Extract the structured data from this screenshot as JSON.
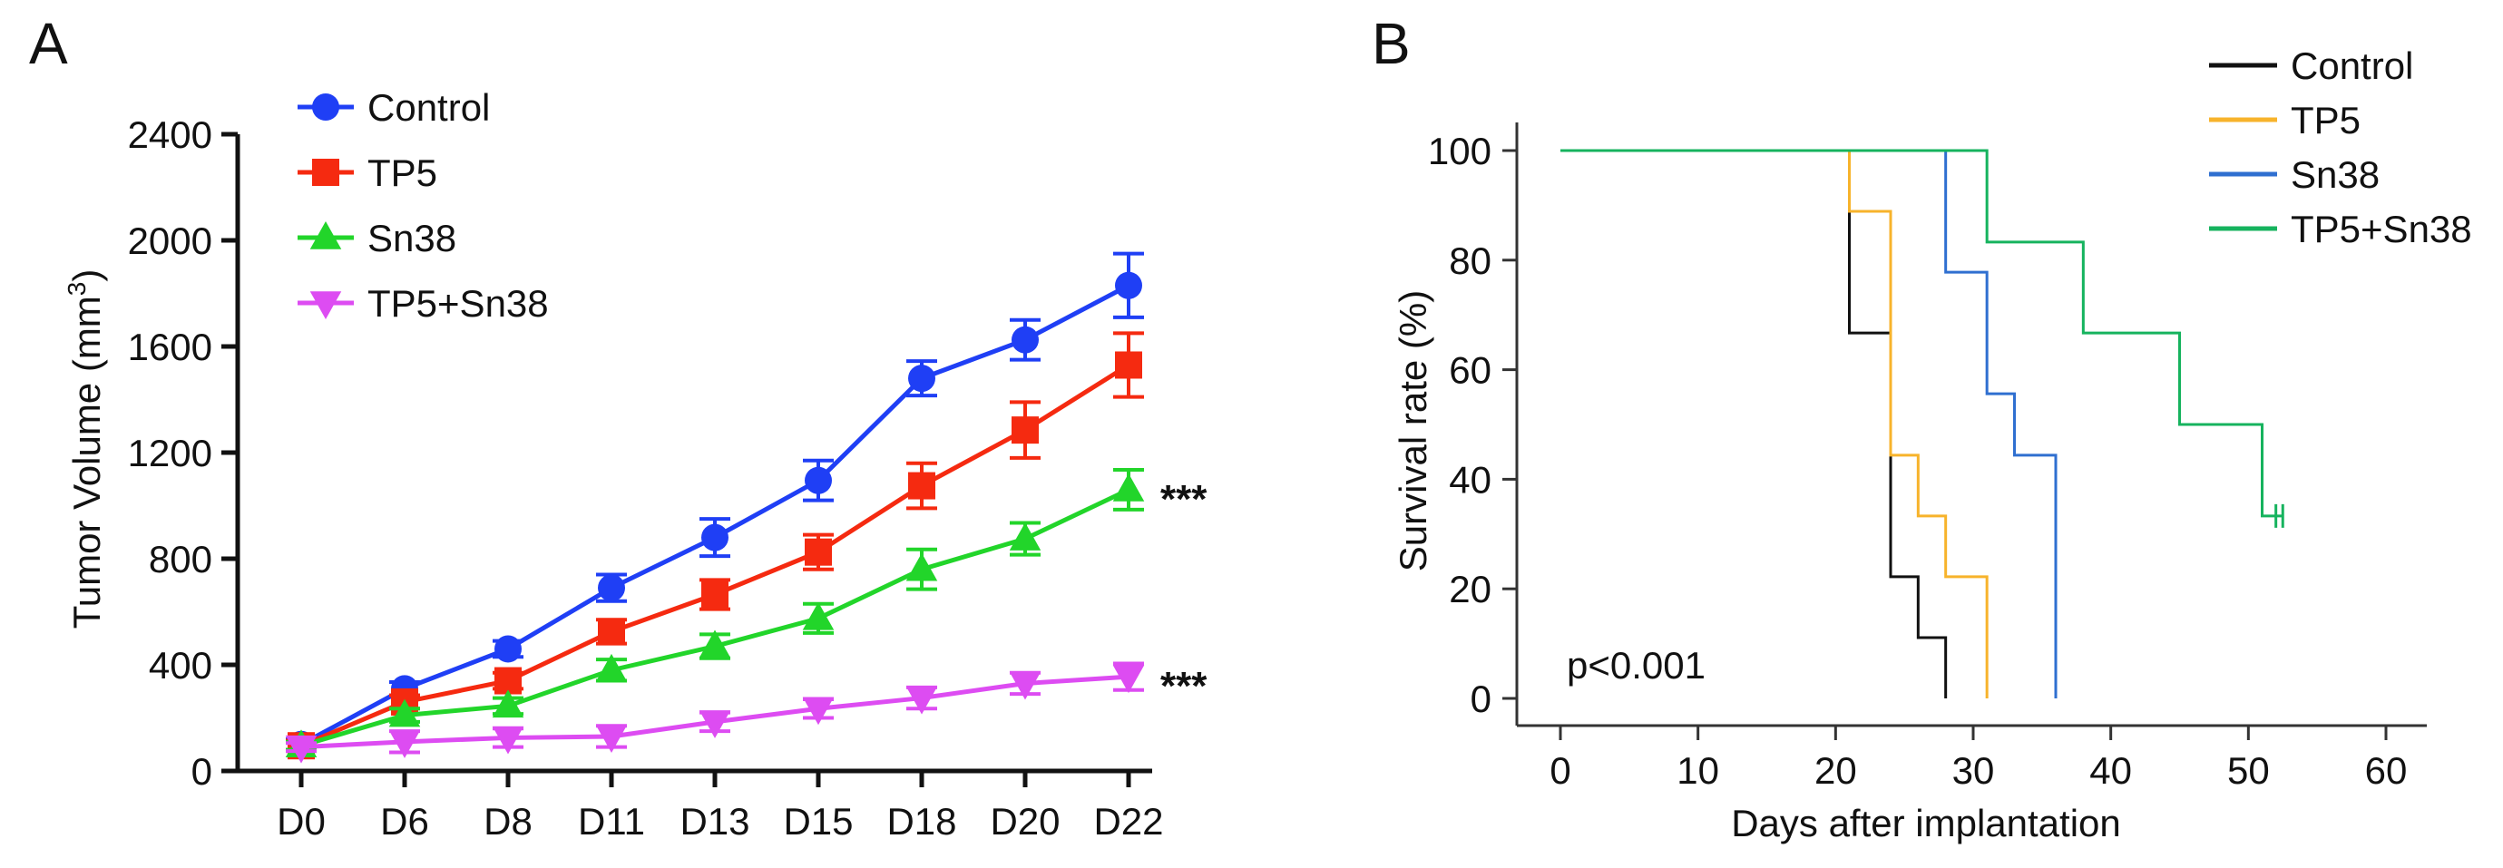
{
  "chart_data": [
    {
      "panel_label": "A",
      "type": "line",
      "title": "",
      "xlabel": "",
      "ylabel": "Tumor Volume (mm",
      "ylabel_sup": "3",
      "ylabel_close": ")",
      "ylim": [
        0,
        2400
      ],
      "yticks": [
        0,
        400,
        800,
        1200,
        1600,
        2000,
        2400
      ],
      "categories": [
        "D0",
        "D6",
        "D8",
        "D11",
        "D13",
        "D15",
        "D18",
        "D20",
        "D22"
      ],
      "legend_position": "top-left",
      "series": [
        {
          "name": "Control",
          "color": "#1f3ff5",
          "marker": "circle",
          "values": [
            100,
            310,
            460,
            690,
            880,
            1095,
            1480,
            1625,
            1830
          ],
          "errors": [
            20,
            25,
            30,
            50,
            70,
            75,
            65,
            75,
            120
          ]
        },
        {
          "name": "TP5",
          "color": "#f52a10",
          "marker": "square",
          "values": [
            95,
            260,
            340,
            525,
            665,
            825,
            1075,
            1285,
            1530
          ],
          "errors": [
            20,
            25,
            30,
            45,
            55,
            65,
            85,
            105,
            120
          ]
        },
        {
          "name": "Sn38",
          "color": "#22d52a",
          "marker": "triangle-up",
          "values": [
            95,
            210,
            245,
            380,
            470,
            575,
            760,
            875,
            1060
          ],
          "errors": [
            15,
            25,
            30,
            40,
            45,
            55,
            75,
            60,
            75
          ]
        },
        {
          "name": "TP5+Sn38",
          "color": "#dd4cf2",
          "marker": "triangle-down",
          "values": [
            90,
            110,
            125,
            130,
            185,
            235,
            275,
            330,
            355
          ],
          "errors": [
            15,
            40,
            35,
            40,
            35,
            35,
            40,
            40,
            50
          ]
        }
      ],
      "annotations": [
        {
          "series": "Sn38",
          "text": "***"
        },
        {
          "series": "TP5+Sn38",
          "text": "***"
        }
      ]
    },
    {
      "panel_label": "B",
      "type": "line",
      "step": true,
      "title": "",
      "xlabel": "Days after implantation",
      "ylabel": "Survival rate (%)",
      "xlim": [
        0,
        60
      ],
      "ylim": [
        0,
        100
      ],
      "xticks": [
        0,
        10,
        20,
        30,
        40,
        50,
        60
      ],
      "yticks": [
        0,
        20,
        40,
        60,
        80,
        100
      ],
      "legend_position": "top-right",
      "annotation": "p<0.001",
      "series": [
        {
          "name": "Control",
          "color": "#111111",
          "x": [
            0,
            21,
            24,
            26,
            28
          ],
          "y": [
            100,
            66.7,
            22.2,
            11.1,
            0
          ]
        },
        {
          "name": "TP5",
          "color": "#f7b32b",
          "x": [
            0,
            21,
            24,
            26,
            28,
            31
          ],
          "y": [
            100,
            88.9,
            44.4,
            33.3,
            22.2,
            0
          ]
        },
        {
          "name": "Sn38",
          "color": "#2f6fd0",
          "x": [
            0,
            28,
            31,
            33,
            36
          ],
          "y": [
            100,
            77.8,
            55.6,
            44.4,
            0
          ]
        },
        {
          "name": "TP5+Sn38",
          "color": "#16b35e",
          "x": [
            0,
            31,
            38,
            45,
            51
          ],
          "y": [
            100,
            83.3,
            66.7,
            50,
            33.3
          ],
          "end_x": 52.5,
          "censored_x": [
            52,
            52.5
          ]
        }
      ]
    }
  ]
}
